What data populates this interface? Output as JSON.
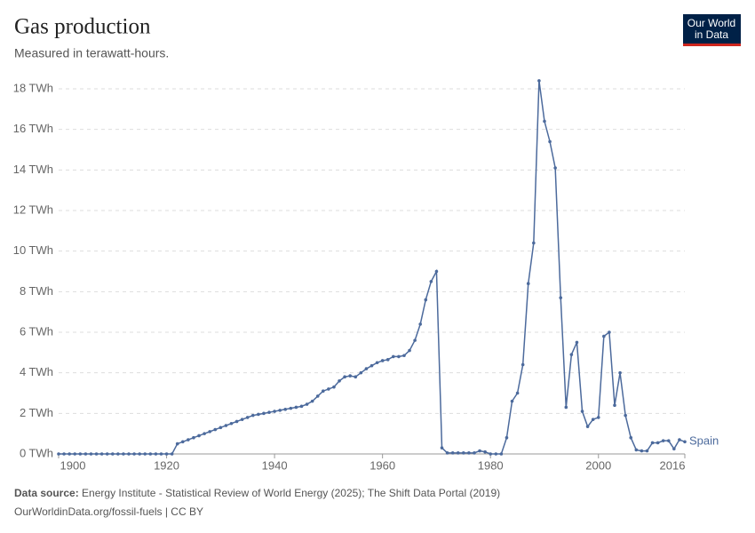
{
  "chart_data": {
    "type": "line",
    "title": "Gas production",
    "subtitle": "Measured in terawatt-hours.",
    "x": [
      1900,
      1901,
      1902,
      1903,
      1904,
      1905,
      1906,
      1907,
      1908,
      1909,
      1910,
      1911,
      1912,
      1913,
      1914,
      1915,
      1916,
      1917,
      1918,
      1919,
      1920,
      1921,
      1922,
      1923,
      1924,
      1925,
      1926,
      1927,
      1928,
      1929,
      1930,
      1931,
      1932,
      1933,
      1934,
      1935,
      1936,
      1937,
      1938,
      1939,
      1940,
      1941,
      1942,
      1943,
      1944,
      1945,
      1946,
      1947,
      1948,
      1949,
      1950,
      1951,
      1952,
      1953,
      1954,
      1955,
      1956,
      1957,
      1958,
      1959,
      1960,
      1961,
      1962,
      1963,
      1964,
      1965,
      1966,
      1967,
      1968,
      1969,
      1970,
      1971,
      1972,
      1973,
      1974,
      1975,
      1976,
      1977,
      1978,
      1979,
      1980,
      1981,
      1982,
      1983,
      1984,
      1985,
      1986,
      1987,
      1988,
      1989,
      1990,
      1991,
      1992,
      1993,
      1994,
      1995,
      1996,
      1997,
      1998,
      1999,
      2000,
      2001,
      2002,
      2003,
      2004,
      2005,
      2006,
      2007,
      2008,
      2009,
      2010,
      2011,
      2012,
      2013,
      2014,
      2015,
      2016
    ],
    "series": [
      {
        "name": "Spain",
        "color": "#4c6a9c",
        "values": [
          0,
          0,
          0,
          0,
          0,
          0,
          0,
          0,
          0,
          0,
          0,
          0,
          0,
          0,
          0,
          0,
          0,
          0,
          0,
          0,
          0,
          0,
          0.5,
          0.6,
          0.7,
          0.8,
          0.9,
          1.0,
          1.1,
          1.2,
          1.3,
          1.4,
          1.5,
          1.6,
          1.7,
          1.8,
          1.9,
          1.95,
          2.0,
          2.05,
          2.1,
          2.15,
          2.2,
          2.25,
          2.3,
          2.35,
          2.45,
          2.6,
          2.85,
          3.1,
          3.2,
          3.3,
          3.6,
          3.8,
          3.85,
          3.8,
          4.0,
          4.2,
          4.35,
          4.5,
          4.6,
          4.65,
          4.8,
          4.8,
          4.85,
          5.1,
          5.6,
          6.4,
          7.6,
          8.5,
          9.0,
          0.3,
          0.05,
          0.05,
          0.05,
          0.05,
          0.05,
          0.05,
          0.15,
          0.1,
          0,
          0,
          0,
          0.8,
          2.6,
          3.0,
          4.4,
          8.4,
          10.4,
          18.4,
          16.4,
          15.4,
          14.1,
          7.7,
          2.3,
          4.9,
          5.5,
          2.1,
          1.35,
          1.7,
          1.8,
          5.8,
          6.0,
          2.4,
          4.0,
          1.9,
          0.8,
          0.2,
          0.15,
          0.15,
          0.55,
          0.55,
          0.65,
          0.65,
          0.25,
          0.7,
          0.6
        ]
      }
    ],
    "xlim": [
      1900,
      2016
    ],
    "xticks": [
      1900,
      1920,
      1940,
      1960,
      1980,
      2000,
      2016
    ],
    "ylim": [
      0,
      18
    ],
    "yticks": [
      {
        "value": 0,
        "label": "0 TWh"
      },
      {
        "value": 2,
        "label": "2 TWh"
      },
      {
        "value": 4,
        "label": "4 TWh"
      },
      {
        "value": 6,
        "label": "6 TWh"
      },
      {
        "value": 8,
        "label": "8 TWh"
      },
      {
        "value": 10,
        "label": "10 TWh"
      },
      {
        "value": 12,
        "label": "12 TWh"
      },
      {
        "value": 14,
        "label": "14 TWh"
      },
      {
        "value": 16,
        "label": "16 TWh"
      },
      {
        "value": 18,
        "label": "18 TWh"
      }
    ],
    "grid": true,
    "source_label": "Data source:",
    "source_text": "Energy Institute - Statistical Review of World Energy (2025); The Shift Data Portal (2019)",
    "footer": "OurWorldinData.org/fossil-fuels | CC BY",
    "logo": [
      "Our World",
      "in Data"
    ]
  }
}
